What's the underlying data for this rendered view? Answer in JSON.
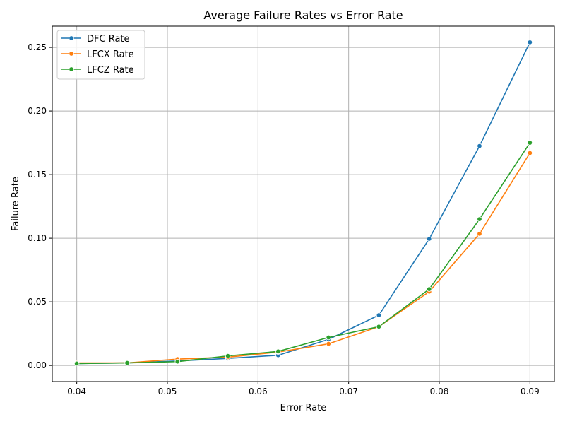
{
  "chart_data": {
    "type": "line",
    "title": "Average Failure Rates vs Error Rate",
    "xlabel": "Error Rate",
    "ylabel": "Failure Rate",
    "x": [
      0.04,
      0.04556,
      0.05111,
      0.05667,
      0.06222,
      0.06778,
      0.07333,
      0.07889,
      0.08444,
      0.09
    ],
    "xlim": [
      0.0373,
      0.0927
    ],
    "ylim": [
      -0.0127,
      0.2667
    ],
    "xticks": [
      0.04,
      0.05,
      0.06,
      0.07,
      0.08,
      0.09
    ],
    "xtick_labels": [
      "0.04",
      "0.05",
      "0.06",
      "0.07",
      "0.08",
      "0.09"
    ],
    "yticks": [
      0.0,
      0.05,
      0.1,
      0.15,
      0.2,
      0.25
    ],
    "ytick_labels": [
      "0.00",
      "0.05",
      "0.10",
      "0.15",
      "0.20",
      "0.25"
    ],
    "grid": true,
    "legend_position": "top-left",
    "series": [
      {
        "name": "DFC Rate",
        "color": "#1f77b4",
        "values": [
          0.0015,
          0.002,
          0.0035,
          0.0055,
          0.008,
          0.0205,
          0.0395,
          0.0995,
          0.1725,
          0.254
        ]
      },
      {
        "name": "LFCX Rate",
        "color": "#ff7f0e",
        "values": [
          0.002,
          0.002,
          0.005,
          0.0065,
          0.0105,
          0.017,
          0.0305,
          0.058,
          0.1035,
          0.167
        ]
      },
      {
        "name": "LFCZ Rate",
        "color": "#2ca02c",
        "values": [
          0.0015,
          0.002,
          0.003,
          0.0075,
          0.011,
          0.022,
          0.0305,
          0.06,
          0.115,
          0.175
        ]
      }
    ]
  }
}
